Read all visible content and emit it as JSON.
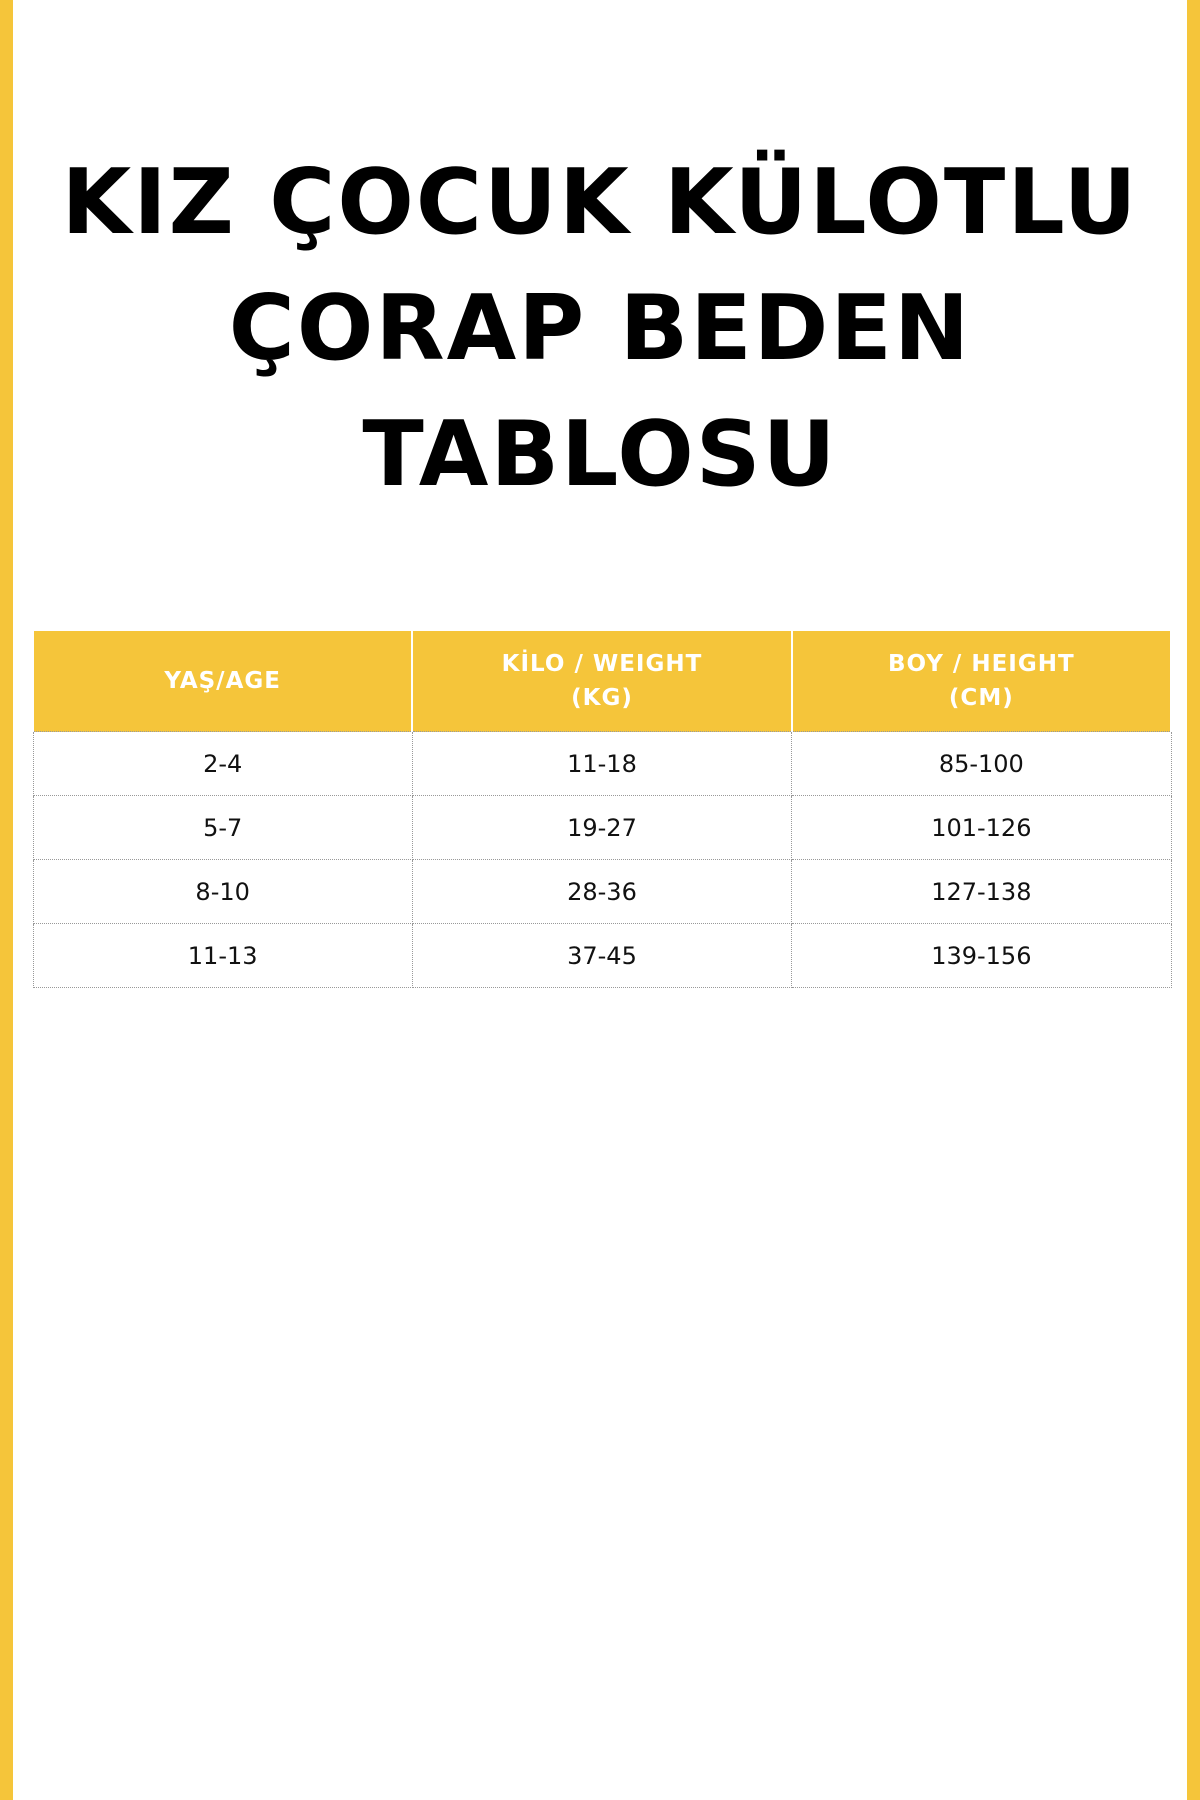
{
  "colors": {
    "accent": "#F5C53A"
  },
  "title": {
    "line1": "KIZ ÇOCUK KÜLOTLU",
    "line2": "ÇORAP BEDEN TABLOSU"
  },
  "table": {
    "headers": [
      {
        "line1": "YAŞ/AGE",
        "line2": ""
      },
      {
        "line1": "KİLO / WEIGHT",
        "line2": "(KG)"
      },
      {
        "line1": "BOY / HEIGHT",
        "line2": "(CM)"
      }
    ],
    "rows": [
      [
        "2-4",
        "11-18",
        "85-100"
      ],
      [
        "5-7",
        "19-27",
        "101-126"
      ],
      [
        "8-10",
        "28-36",
        "127-138"
      ],
      [
        "11-13",
        "37-45",
        "139-156"
      ]
    ]
  }
}
